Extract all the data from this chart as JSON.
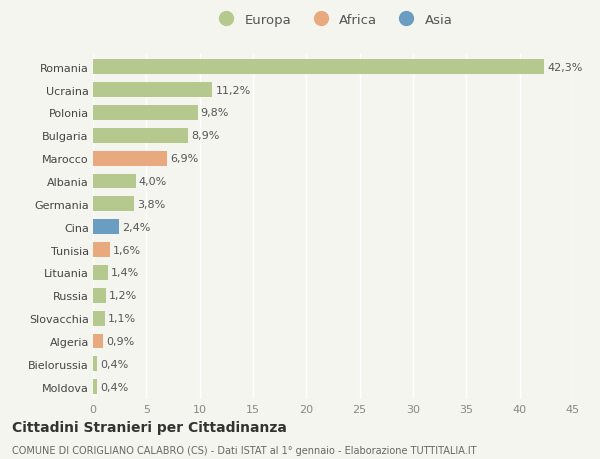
{
  "categories": [
    "Romania",
    "Ucraina",
    "Polonia",
    "Bulgaria",
    "Marocco",
    "Albania",
    "Germania",
    "Cina",
    "Tunisia",
    "Lituania",
    "Russia",
    "Slovacchia",
    "Algeria",
    "Bielorussia",
    "Moldova"
  ],
  "values": [
    42.3,
    11.2,
    9.8,
    8.9,
    6.9,
    4.0,
    3.8,
    2.4,
    1.6,
    1.4,
    1.2,
    1.1,
    0.9,
    0.4,
    0.4
  ],
  "labels": [
    "42,3%",
    "11,2%",
    "9,8%",
    "8,9%",
    "6,9%",
    "4,0%",
    "3,8%",
    "2,4%",
    "1,6%",
    "1,4%",
    "1,2%",
    "1,1%",
    "0,9%",
    "0,4%",
    "0,4%"
  ],
  "continent": [
    "Europa",
    "Europa",
    "Europa",
    "Europa",
    "Africa",
    "Europa",
    "Europa",
    "Asia",
    "Africa",
    "Europa",
    "Europa",
    "Europa",
    "Africa",
    "Europa",
    "Europa"
  ],
  "colors": {
    "Europa": "#b5c98e",
    "Africa": "#e8a97e",
    "Asia": "#6b9dc2"
  },
  "title1": "Cittadini Stranieri per Cittadinanza",
  "title2": "COMUNE DI CORIGLIANO CALABRO (CS) - Dati ISTAT al 1° gennaio - Elaborazione TUTTITALIA.IT",
  "xlim": [
    0,
    45
  ],
  "xticks": [
    0,
    5,
    10,
    15,
    20,
    25,
    30,
    35,
    40,
    45
  ],
  "background_color": "#f5f5f0",
  "bar_height": 0.65,
  "grid_color": "#ffffff",
  "label_fontsize": 8,
  "tick_fontsize": 8,
  "ytick_fontsize": 8
}
